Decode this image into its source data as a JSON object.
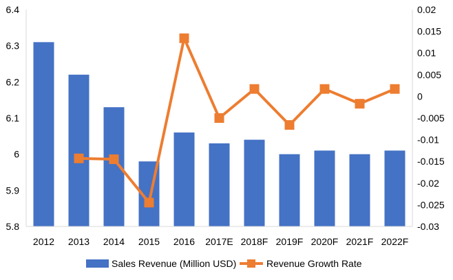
{
  "chart_data": {
    "type": "bar+line",
    "title": "",
    "categories": [
      "2012",
      "2013",
      "2014",
      "2015",
      "2016",
      "2017E",
      "2018F",
      "2019F",
      "2020F",
      "2021F",
      "2022F"
    ],
    "series": [
      {
        "name": "Sales Revenue (Million USD)",
        "type": "bar",
        "axis": "left",
        "color": "#4472C4",
        "values": [
          6.31,
          6.22,
          6.13,
          5.98,
          6.06,
          6.03,
          6.04,
          6.0,
          6.01,
          6.0,
          6.01
        ]
      },
      {
        "name": "Revenue Growth Rate",
        "type": "line",
        "axis": "right",
        "color": "#ED7D31",
        "values": [
          null,
          -0.0143,
          -0.0145,
          -0.0245,
          0.0134,
          -0.005,
          0.0017,
          -0.0066,
          0.0017,
          -0.0017,
          0.0017
        ]
      }
    ],
    "y_left": {
      "min": 5.8,
      "max": 6.4,
      "ticks": [
        5.8,
        5.9,
        6.0,
        6.1,
        6.2,
        6.3,
        6.4
      ],
      "tick_labels": [
        "5.8",
        "5.9",
        "6",
        "6.1",
        "6.2",
        "6.3",
        "6.4"
      ]
    },
    "y_right": {
      "min": -0.03,
      "max": 0.02,
      "ticks": [
        -0.03,
        -0.025,
        -0.02,
        -0.015,
        -0.01,
        -0.005,
        0,
        0.005,
        0.01,
        0.015,
        0.02
      ],
      "tick_labels": [
        "-0.03",
        "-0.025",
        "-0.02",
        "-0.015",
        "-0.01",
        "-0.005",
        "0",
        "0.005",
        "0.01",
        "0.015",
        "0.02"
      ]
    },
    "legend": {
      "position": "bottom",
      "items": [
        "Sales Revenue (Million USD)",
        "Revenue Growth Rate"
      ]
    },
    "grid": false
  }
}
